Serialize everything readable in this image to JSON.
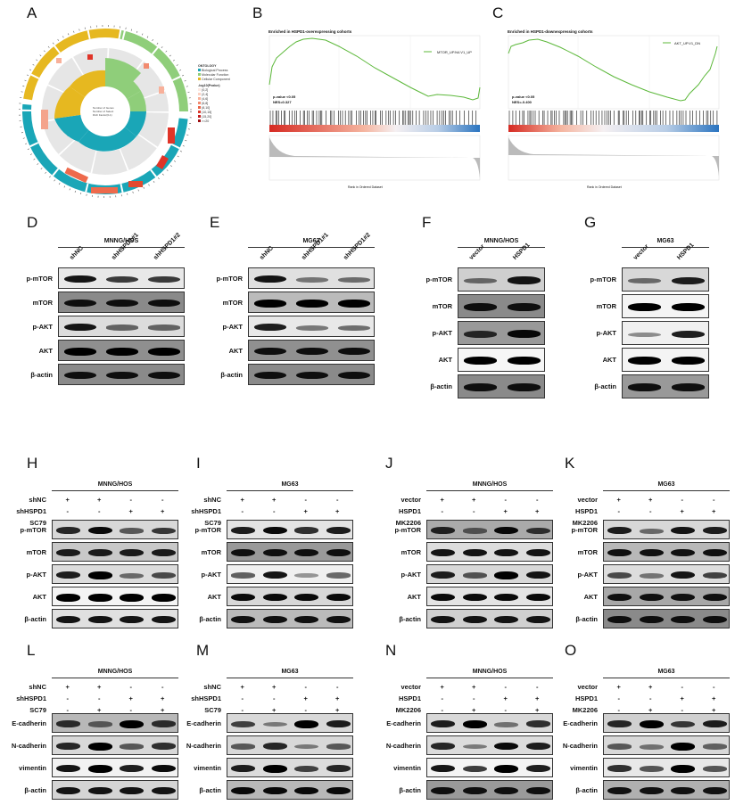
{
  "panels": {
    "A": {
      "label": "A"
    },
    "B": {
      "label": "B"
    },
    "C": {
      "label": "C"
    },
    "D": {
      "label": "D"
    },
    "E": {
      "label": "E"
    },
    "F": {
      "label": "F"
    },
    "G": {
      "label": "G"
    },
    "H": {
      "label": "H"
    },
    "I": {
      "label": "I"
    },
    "J": {
      "label": "J"
    },
    "K": {
      "label": "K"
    },
    "L": {
      "label": "L"
    },
    "M": {
      "label": "M"
    },
    "N": {
      "label": "N"
    },
    "O": {
      "label": "O"
    }
  },
  "panelA": {
    "legend_title": "ONTOLOGY",
    "legend_items": [
      "Biological Process",
      "Molecular Function",
      "Cellular Component"
    ],
    "legend_colors": [
      "#1aa6b7",
      "#8fce7a",
      "#e6b820"
    ],
    "pvalue_title": "-log10(Pvalue)",
    "pvalue_bins": [
      "(0,2]",
      "(2,4]",
      "(4,6]",
      "(6,8]",
      "(8,10]",
      "(10,15]",
      "(15,20]",
      ">=20"
    ],
    "pvalue_colors": [
      "#fde9e3",
      "#fbd0c2",
      "#f8b09a",
      "#f28b70",
      "#ea6448",
      "#dc3a2c",
      "#c41e1e",
      "#9e0e12"
    ],
    "center_legend": [
      "Number of Genes",
      "Number of Select",
      "Rich Factor(0-1)"
    ]
  },
  "panelB": {
    "title": "Enriched in HSPD1-overexpressing cohorts",
    "legend": "MTOR_UP.N4.V1_UP",
    "pvalue": "p-value <0.05",
    "nes": "NES=0.327",
    "ylabel_top": "Running Enrichment Score",
    "ylabel_bottom": "Ranked List Metric",
    "xlabel": "Rank in Ordered Dataset"
  },
  "panelC": {
    "title": "Enriched in HSPD1-downexpressing cohorts",
    "legend": "AKT_UP.V1_DN",
    "pvalue": "p-value <0.05",
    "nes": "NES=-0.400",
    "ylabel_top": "Running Enrichment Score",
    "ylabel_bottom": "Ranked List Metric",
    "xlabel": "Rank in Ordered Dataset"
  },
  "blots": {
    "D": {
      "cell": "MNNG/HOS",
      "lanes": [
        "shNC",
        "shHSPD1#1",
        "shHSPD1#2"
      ],
      "rows": [
        "p-mTOR",
        "mTOR",
        "p-AKT",
        "AKT",
        "β-actin"
      ]
    },
    "E": {
      "cell": "MG63",
      "lanes": [
        "shNC",
        "shHSPD1#1",
        "shHSPD1#2"
      ],
      "rows": [
        "p-mTOR",
        "mTOR",
        "p-AKT",
        "AKT",
        "β-actin"
      ]
    },
    "F": {
      "cell": "MNNG/HOS",
      "lanes": [
        "vector",
        "HSPD1"
      ],
      "rows": [
        "p-mTOR",
        "mTOR",
        "p-AKT",
        "AKT",
        "β-actin"
      ]
    },
    "G": {
      "cell": "MG63",
      "lanes": [
        "vector",
        "HSPD1"
      ],
      "rows": [
        "p-mTOR",
        "mTOR",
        "p-AKT",
        "AKT",
        "β-actin"
      ]
    },
    "H": {
      "cell": "MNNG/HOS",
      "conds": [
        "shNC",
        "shHSPD1",
        "SC79"
      ],
      "rows": [
        "p-mTOR",
        "mTOR",
        "p-AKT",
        "AKT",
        "β-actin"
      ]
    },
    "I": {
      "cell": "MG63",
      "conds": [
        "shNC",
        "shHSPD1",
        "SC79"
      ],
      "rows": [
        "p-mTOR",
        "mTOR",
        "p-AKT",
        "AKT",
        "β-actin"
      ]
    },
    "J": {
      "cell": "MNNG/HOS",
      "conds": [
        "vector",
        "HSPD1",
        "MK2206"
      ],
      "rows": [
        "p-mTOR",
        "mTOR",
        "p-AKT",
        "AKT",
        "β-actin"
      ]
    },
    "K": {
      "cell": "MG63",
      "conds": [
        "vector",
        "HSPD1",
        "MK2206"
      ],
      "rows": [
        "p-mTOR",
        "mTOR",
        "p-AKT",
        "AKT",
        "β-actin"
      ]
    },
    "L": {
      "cell": "MNNG/HOS",
      "conds": [
        "shNC",
        "shHSPD1",
        "SC79"
      ],
      "rows": [
        "E-cadherin",
        "N-cadherin",
        "vimentin",
        "β-actin"
      ]
    },
    "M": {
      "cell": "MG63",
      "conds": [
        "shNC",
        "shHSPD1",
        "SC79"
      ],
      "rows": [
        "E-cadherin",
        "N-cadherin",
        "vimentin",
        "β-actin"
      ]
    },
    "N": {
      "cell": "MNNG/HOS",
      "conds": [
        "vector",
        "HSPD1",
        "MK2206"
      ],
      "rows": [
        "E-cadherin",
        "N-cadherin",
        "vimentin",
        "β-actin"
      ]
    },
    "O": {
      "cell": "MG63",
      "conds": [
        "vector",
        "HSPD1",
        "MK2206"
      ],
      "rows": [
        "E-cadherin",
        "N-cadherin",
        "vimentin",
        "β-actin"
      ]
    }
  },
  "signs": {
    "row1": [
      "+",
      "+",
      "-",
      "-"
    ],
    "row2": [
      "-",
      "-",
      "+",
      "+"
    ],
    "row3": [
      "-",
      "+",
      "-",
      "+"
    ]
  }
}
